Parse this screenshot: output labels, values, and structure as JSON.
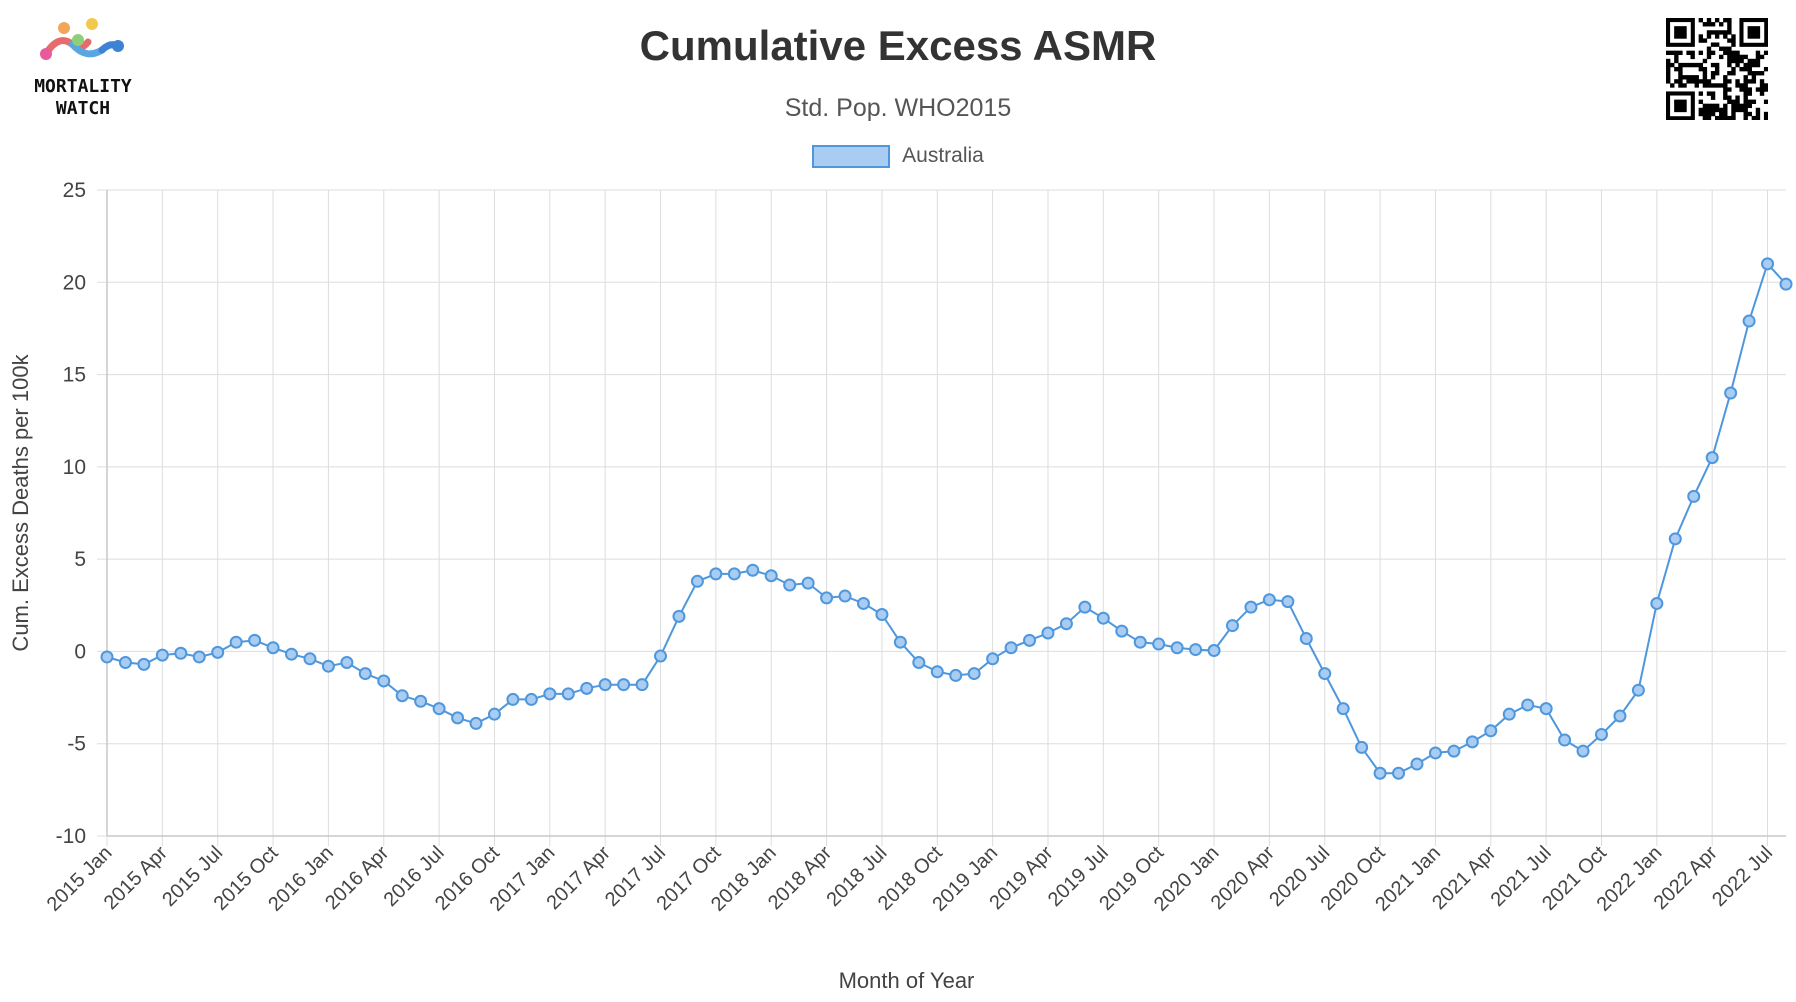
{
  "header": {
    "title": "Cumulative Excess ASMR",
    "subtitle": "Std. Pop. WHO2015",
    "logo_text_line1": "MORTALITY",
    "logo_text_line2": "WATCH",
    "logo_icon": "mortality-watch-logo",
    "qr_icon": "qr-code"
  },
  "colors": {
    "line": "#4f97dd",
    "point_fill": "#a9ccf2",
    "grid": "#dddddd",
    "text": "#333333"
  },
  "chart_data": {
    "type": "line",
    "title": "Cumulative Excess ASMR",
    "subtitle": "Std. Pop. WHO2015",
    "xlabel": "Month of Year",
    "ylabel": "Cum. Excess Deaths per 100k",
    "ylim": [
      -10,
      25
    ],
    "yticks": [
      25,
      20,
      15,
      10,
      5,
      0,
      -5,
      -10
    ],
    "legend_position": "top-center",
    "grid": true,
    "categories": [
      "2015 Jan",
      "2015 Feb",
      "2015 Mar",
      "2015 Apr",
      "2015 May",
      "2015 Jun",
      "2015 Jul",
      "2015 Aug",
      "2015 Sep",
      "2015 Oct",
      "2015 Nov",
      "2015 Dec",
      "2016 Jan",
      "2016 Feb",
      "2016 Mar",
      "2016 Apr",
      "2016 May",
      "2016 Jun",
      "2016 Jul",
      "2016 Aug",
      "2016 Sep",
      "2016 Oct",
      "2016 Nov",
      "2016 Dec",
      "2017 Jan",
      "2017 Feb",
      "2017 Mar",
      "2017 Apr",
      "2017 May",
      "2017 Jun",
      "2017 Jul",
      "2017 Aug",
      "2017 Sep",
      "2017 Oct",
      "2017 Nov",
      "2017 Dec",
      "2018 Jan",
      "2018 Feb",
      "2018 Mar",
      "2018 Apr",
      "2018 May",
      "2018 Jun",
      "2018 Jul",
      "2018 Aug",
      "2018 Sep",
      "2018 Oct",
      "2018 Nov",
      "2018 Dec",
      "2019 Jan",
      "2019 Feb",
      "2019 Mar",
      "2019 Apr",
      "2019 May",
      "2019 Jun",
      "2019 Jul",
      "2019 Aug",
      "2019 Sep",
      "2019 Oct",
      "2019 Nov",
      "2019 Dec",
      "2020 Jan",
      "2020 Feb",
      "2020 Mar",
      "2020 Apr",
      "2020 May",
      "2020 Jun",
      "2020 Jul",
      "2020 Aug",
      "2020 Sep",
      "2020 Oct",
      "2020 Nov",
      "2020 Dec",
      "2021 Jan",
      "2021 Feb",
      "2021 Mar",
      "2021 Apr",
      "2021 May",
      "2021 Jun",
      "2021 Jul",
      "2021 Aug",
      "2021 Sep",
      "2021 Oct",
      "2021 Nov",
      "2021 Dec",
      "2022 Jan",
      "2022 Feb",
      "2022 Mar",
      "2022 Apr",
      "2022 May",
      "2022 Jun",
      "2022 Jul",
      "2022 Aug"
    ],
    "x_tick_labels": [
      "2015 Jan",
      "2015 Apr",
      "2015 Jul",
      "2015 Oct",
      "2016 Jan",
      "2016 Apr",
      "2016 Jul",
      "2016 Oct",
      "2017 Jan",
      "2017 Apr",
      "2017 Jul",
      "2017 Oct",
      "2018 Jan",
      "2018 Apr",
      "2018 Jul",
      "2018 Oct",
      "2019 Jan",
      "2019 Apr",
      "2019 Jul",
      "2019 Oct",
      "2020 Jan",
      "2020 Apr",
      "2020 Jul",
      "2020 Oct",
      "2021 Jan",
      "2021 Apr",
      "2021 Jul",
      "2021 Oct",
      "2022 Jan",
      "2022 Apr",
      "2022 Jul"
    ],
    "series": [
      {
        "name": "Australia",
        "values": [
          -0.3,
          -0.6,
          -0.7,
          -0.2,
          -0.1,
          -0.3,
          -0.05,
          0.5,
          0.6,
          0.2,
          -0.15,
          -0.4,
          -0.8,
          -0.6,
          -1.2,
          -1.6,
          -2.4,
          -2.7,
          -3.1,
          -3.6,
          -3.9,
          -3.4,
          -2.6,
          -2.6,
          -2.3,
          -2.3,
          -2.0,
          -1.8,
          -1.8,
          -1.8,
          -0.25,
          1.9,
          3.8,
          4.2,
          4.2,
          4.4,
          4.1,
          3.6,
          3.7,
          2.9,
          3.0,
          2.6,
          2.0,
          0.5,
          -0.6,
          -1.1,
          -1.3,
          -1.2,
          -0.4,
          0.2,
          0.6,
          1.0,
          1.5,
          2.4,
          1.8,
          1.1,
          0.5,
          0.4,
          0.2,
          0.1,
          0.05,
          1.4,
          2.4,
          2.8,
          2.7,
          0.7,
          -1.2,
          -3.1,
          -5.2,
          -6.6,
          -6.6,
          -6.1,
          -5.5,
          -5.4,
          -4.9,
          -4.3,
          -3.4,
          -2.9,
          -3.1,
          -4.8,
          -5.4,
          -4.5,
          -3.5,
          -2.1,
          2.6,
          6.1,
          8.4,
          10.5,
          14.0,
          17.9,
          21.0,
          19.9
        ]
      }
    ]
  }
}
